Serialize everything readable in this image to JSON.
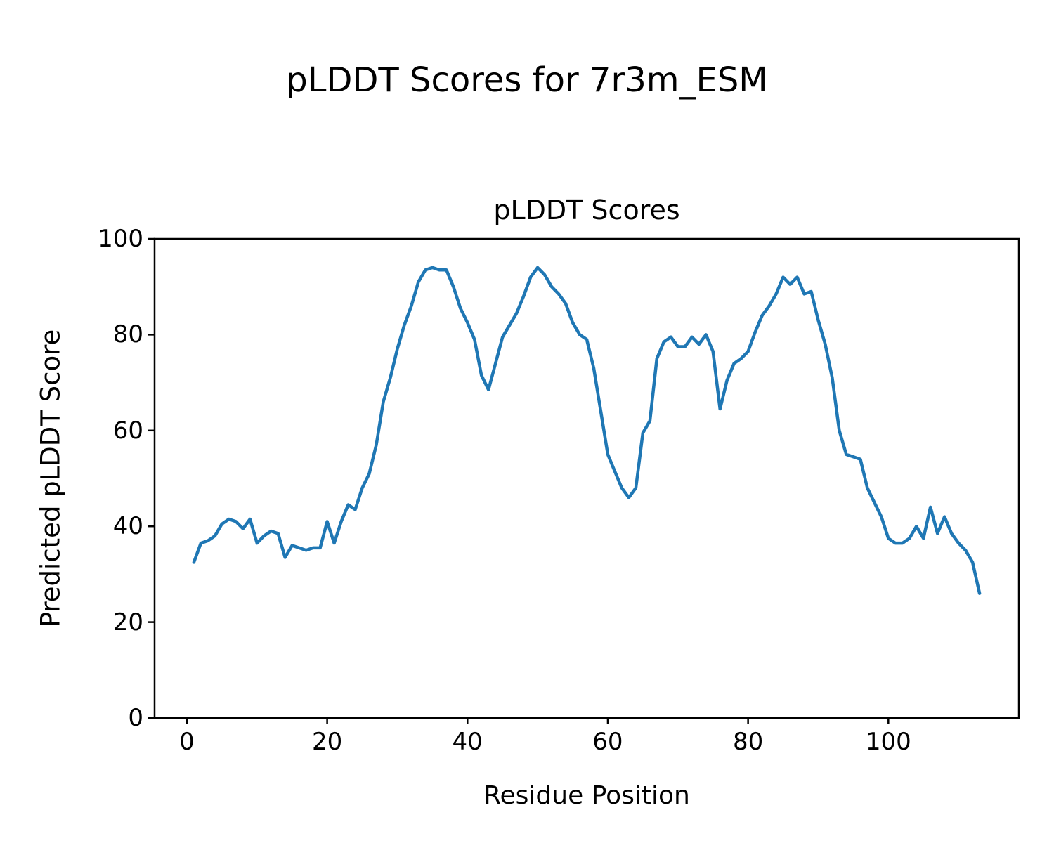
{
  "figure": {
    "suptitle": "pLDDT Scores for 7r3m_ESM"
  },
  "colors": {
    "line": "#1f77b4",
    "axis": "#000000",
    "background": "#ffffff"
  },
  "chart_data": {
    "type": "line",
    "title": "pLDDT Scores",
    "suptitle": "pLDDT Scores for 7r3m_ESM",
    "xlabel": "Residue Position",
    "ylabel": "Predicted pLDDT Score",
    "xlim": [
      -4.6,
      118.6
    ],
    "ylim": [
      0,
      100
    ],
    "xticks": [
      0,
      20,
      40,
      60,
      80,
      100
    ],
    "yticks": [
      0,
      20,
      40,
      60,
      80,
      100
    ],
    "grid": false,
    "legend_position": "none",
    "line_color": "#1f77b4",
    "line_width": 4.5,
    "series_name": "pLDDT",
    "x": [
      1,
      2,
      3,
      4,
      5,
      6,
      7,
      8,
      9,
      10,
      11,
      12,
      13,
      14,
      15,
      16,
      17,
      18,
      19,
      20,
      21,
      22,
      23,
      24,
      25,
      26,
      27,
      28,
      29,
      30,
      31,
      32,
      33,
      34,
      35,
      36,
      37,
      38,
      39,
      40,
      41,
      42,
      43,
      44,
      45,
      46,
      47,
      48,
      49,
      50,
      51,
      52,
      53,
      54,
      55,
      56,
      57,
      58,
      59,
      60,
      61,
      62,
      63,
      64,
      65,
      66,
      67,
      68,
      69,
      70,
      71,
      72,
      73,
      74,
      75,
      76,
      77,
      78,
      79,
      80,
      81,
      82,
      83,
      84,
      85,
      86,
      87,
      88,
      89,
      90,
      91,
      92,
      93,
      94,
      95,
      96,
      97,
      98,
      99,
      100,
      101,
      102,
      103,
      104,
      105,
      106,
      107,
      108,
      109,
      110,
      111,
      112,
      113
    ],
    "values": [
      32.5,
      36.5,
      37,
      38,
      40.5,
      41.5,
      41,
      39.5,
      41.5,
      36.5,
      38,
      39,
      38.5,
      33.5,
      36,
      35.5,
      35,
      35.5,
      35.5,
      41,
      36.5,
      41,
      44.5,
      43.5,
      48,
      51,
      57,
      66,
      71,
      77,
      82,
      86,
      91,
      93.5,
      94,
      93.5,
      93.5,
      90,
      85.5,
      82.5,
      79,
      71.5,
      68.5,
      74,
      79.5,
      82,
      84.5,
      88,
      92,
      94,
      92.5,
      90,
      88.5,
      86.5,
      82.5,
      80,
      79,
      73,
      64,
      55,
      51.5,
      48,
      46,
      48,
      59.5,
      62,
      75,
      78.5,
      79.5,
      77.5,
      77.5,
      79.5,
      78,
      80,
      76.5,
      64.5,
      70.5,
      74,
      75,
      76.5,
      80.5,
      84,
      86,
      88.5,
      92,
      90.5,
      92,
      88.5,
      89,
      83,
      78,
      71,
      60,
      55,
      54.5,
      54,
      48,
      45,
      42,
      37.5,
      36.5,
      36.5,
      37.5,
      40,
      37.5,
      44,
      38.5,
      42,
      38.5,
      36.5,
      35,
      32.5,
      26
    ]
  }
}
